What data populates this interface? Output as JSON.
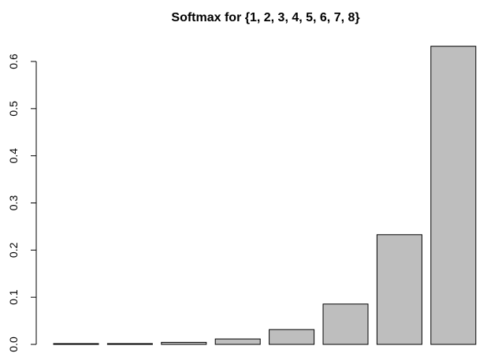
{
  "chart_data": {
    "type": "bar",
    "title": "Softmax for {1, 2, 3, 4, 5, 6, 7, 8}",
    "xlabel": "",
    "ylabel": "",
    "categories": [
      "",
      "",
      "",
      "",
      "",
      "",
      "",
      ""
    ],
    "values": [
      0.0006,
      0.0016,
      0.0043,
      0.0116,
      0.0315,
      0.0856,
      0.2326,
      0.6322
    ],
    "ylim": [
      0,
      0.6
    ],
    "yticks": [
      "0.0",
      "0.1",
      "0.2",
      "0.3",
      "0.4",
      "0.5",
      "0.6"
    ],
    "grid": false,
    "legend": "none",
    "colors": {
      "bar_fill": "#bebebe",
      "bar_stroke": "#000000",
      "axis": "#000000",
      "background": "#ffffff"
    }
  }
}
